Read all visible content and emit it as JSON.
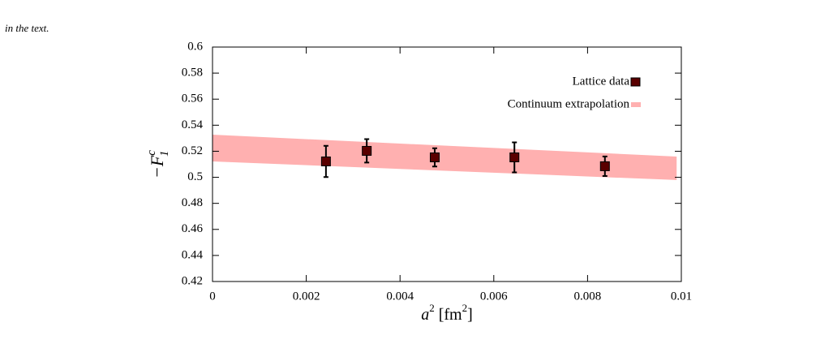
{
  "caption": "in the text.",
  "chart_data": {
    "type": "scatter",
    "xlabel": [
      "a",
      "2",
      " [fm",
      "2",
      "]"
    ],
    "ylabel": {
      "base": "−F",
      "sup": "c",
      "sub": "1"
    },
    "xlim": [
      0,
      0.01
    ],
    "xticks": [
      0,
      0.002,
      0.004,
      0.006,
      0.008,
      0.01
    ],
    "ylim": [
      0.42,
      0.6
    ],
    "yticks": [
      0.42,
      0.44,
      0.46,
      0.48,
      0.5,
      0.52,
      0.54,
      0.56,
      0.58,
      0.6
    ],
    "legend": "top-right",
    "band": {
      "name": "Continuum extrapolation",
      "color": "#ffb0b0",
      "x": [
        0,
        0.0099
      ],
      "lower": [
        0.5122,
        0.4979
      ],
      "upper": [
        0.5327,
        0.5159
      ]
    },
    "series": [
      {
        "name": "Lattice data",
        "color": "#5a0000",
        "x": [
          0.00242,
          0.00329,
          0.00474,
          0.00644,
          0.00837
        ],
        "values": [
          0.5122,
          0.5203,
          0.5153,
          0.5153,
          0.5085
        ],
        "errors": [
          0.012,
          0.009,
          0.007,
          0.0115,
          0.0075
        ]
      }
    ]
  }
}
